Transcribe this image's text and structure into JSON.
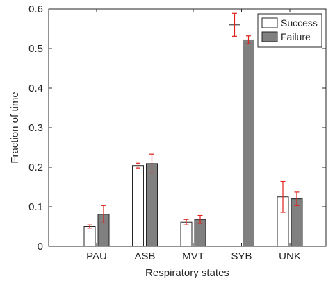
{
  "chart_data": {
    "type": "bar",
    "title": "",
    "xlabel": "Respiratory states",
    "ylabel": "Fraction of time",
    "categories": [
      "PAU",
      "ASB",
      "MVT",
      "SYB",
      "UNK"
    ],
    "ylim": [
      0,
      0.6
    ],
    "yticks": [
      "0",
      "0.1",
      "0.2",
      "0.3",
      "0.4",
      "0.5",
      "0.6"
    ],
    "grid": false,
    "legend_position": "top-right",
    "error_bar_color": "#e0201b",
    "series": [
      {
        "name": "Success",
        "color": "#ffffff",
        "values": [
          0.05,
          0.204,
          0.061,
          0.56,
          0.125
        ],
        "error": [
          0.004,
          0.006,
          0.007,
          0.029,
          0.039
        ]
      },
      {
        "name": "Failure",
        "color": "#808080",
        "values": [
          0.081,
          0.209,
          0.068,
          0.522,
          0.12
        ],
        "error": [
          0.022,
          0.024,
          0.01,
          0.01,
          0.017
        ]
      }
    ]
  }
}
